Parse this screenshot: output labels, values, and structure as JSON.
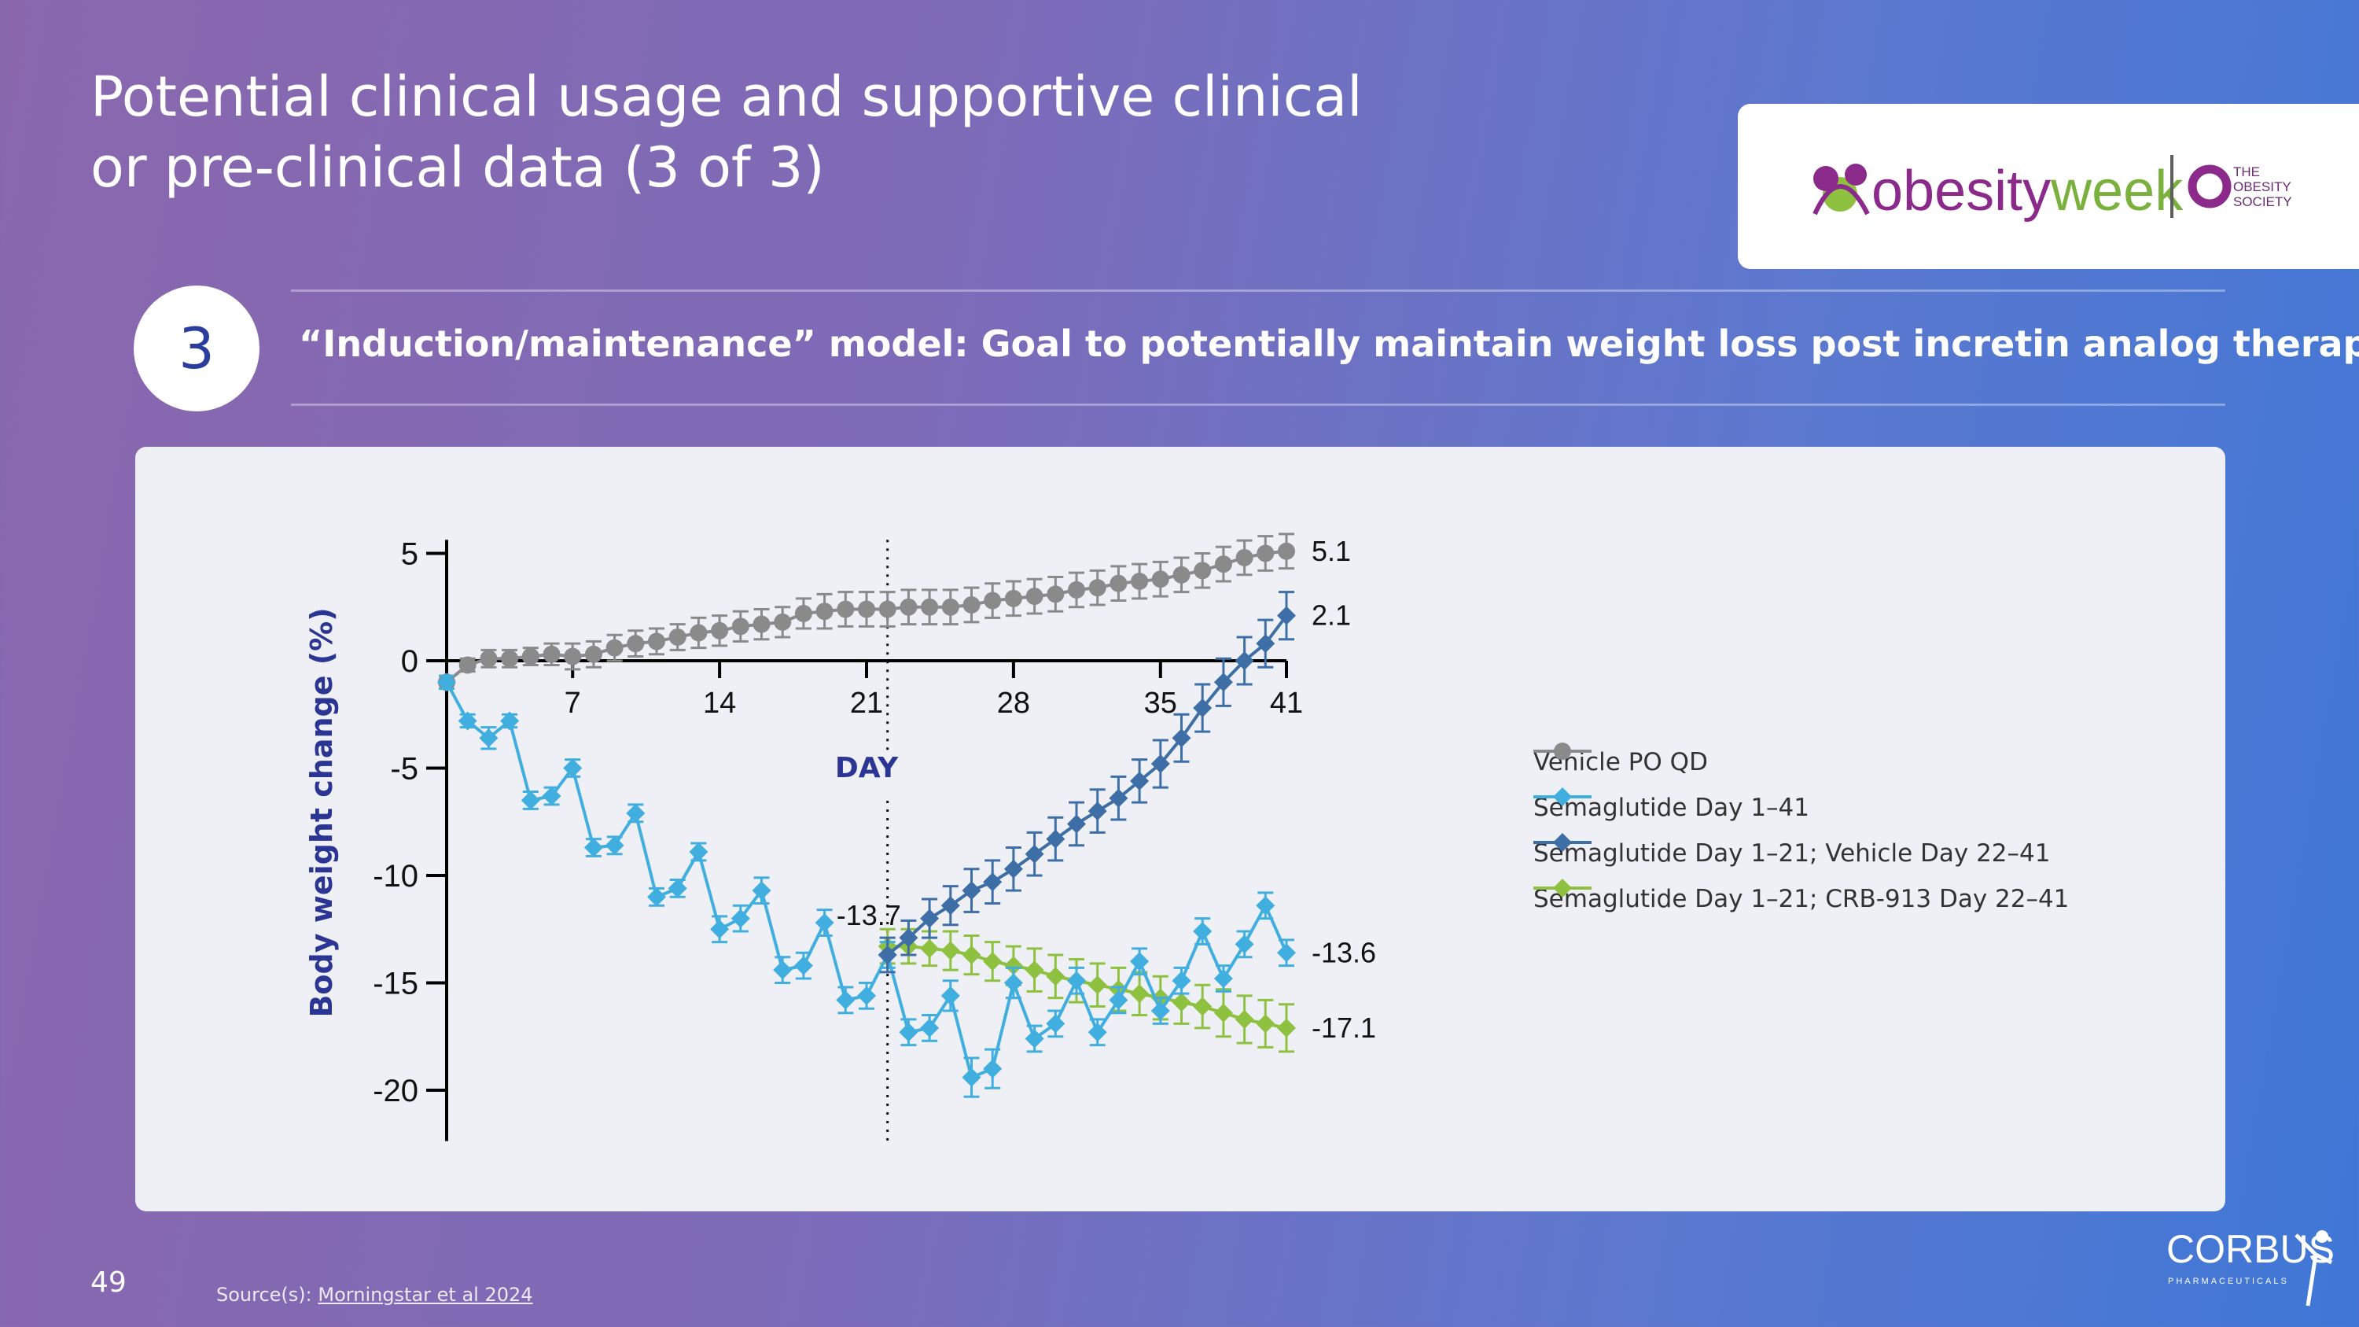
{
  "title_line1": "Potential clinical usage and supportive clinical",
  "title_line2": "or pre-clinical data (3 of 3)",
  "section": {
    "number": "3",
    "subtitle": "“Induction/maintenance” model: Goal to potentially maintain weight loss post incretin analog therapy"
  },
  "logos": {
    "obesityweek": "obesityweek",
    "society": "THE OBESITY SOCIETY",
    "company": "CORBUS",
    "company_sub": "PHARMACEUTICALS"
  },
  "page_number": "49",
  "source_prefix": "Source(s):",
  "source_link": "Morningstar et al 2024",
  "colors": {
    "vehicle": "#8a8a8a",
    "sema_full": "#41aee0",
    "sema_vehicle": "#3e6ea6",
    "sema_crb": "#8dc13f",
    "ylabel": "#2b3593"
  },
  "chart_data": {
    "type": "line",
    "xlabel": "DAY",
    "ylabel": "Body weight change (%)",
    "x_ticks": [
      7,
      14,
      21,
      28,
      35,
      41
    ],
    "y_ticks": [
      5,
      0,
      -5,
      -10,
      -15,
      -20
    ],
    "xlim": [
      1,
      41
    ],
    "ylim": [
      -22,
      6
    ],
    "marker_day": 22,
    "annotations": [
      {
        "text": "-13.7",
        "x": 22,
        "y": -13.7
      },
      {
        "text": "5.1",
        "x": 41,
        "y": 5.1
      },
      {
        "text": "2.1",
        "x": 41,
        "y": 2.1
      },
      {
        "text": "-13.6",
        "x": 41,
        "y": -13.6
      },
      {
        "text": "-17.1",
        "x": 41,
        "y": -17.1
      }
    ],
    "series": [
      {
        "name": "Vehicle PO QD",
        "marker": "circle",
        "x": [
          1,
          2,
          3,
          4,
          5,
          6,
          7,
          8,
          9,
          10,
          11,
          12,
          13,
          14,
          15,
          16,
          17,
          18,
          19,
          20,
          21,
          22,
          23,
          24,
          25,
          26,
          27,
          28,
          29,
          30,
          31,
          32,
          33,
          34,
          35,
          36,
          37,
          38,
          39,
          40,
          41
        ],
        "values": [
          -1.0,
          -0.2,
          0.1,
          0.1,
          0.2,
          0.3,
          0.2,
          0.3,
          0.6,
          0.8,
          0.9,
          1.1,
          1.3,
          1.4,
          1.6,
          1.7,
          1.8,
          2.2,
          2.3,
          2.4,
          2.4,
          2.4,
          2.5,
          2.5,
          2.5,
          2.6,
          2.8,
          2.9,
          3.0,
          3.1,
          3.3,
          3.4,
          3.6,
          3.7,
          3.8,
          4.0,
          4.2,
          4.5,
          4.8,
          5.0,
          5.1
        ],
        "errors": [
          0.3,
          0.3,
          0.4,
          0.4,
          0.4,
          0.5,
          0.6,
          0.6,
          0.6,
          0.6,
          0.6,
          0.6,
          0.7,
          0.7,
          0.7,
          0.7,
          0.7,
          0.7,
          0.8,
          0.8,
          0.8,
          0.8,
          0.8,
          0.8,
          0.8,
          0.8,
          0.8,
          0.8,
          0.8,
          0.8,
          0.8,
          0.8,
          0.8,
          0.8,
          0.8,
          0.8,
          0.8,
          0.8,
          0.8,
          0.8,
          0.8
        ]
      },
      {
        "name": "Semaglutide Day 1–41",
        "marker": "diamond",
        "x": [
          1,
          2,
          3,
          4,
          5,
          6,
          7,
          8,
          9,
          10,
          11,
          12,
          13,
          14,
          15,
          16,
          17,
          18,
          19,
          20,
          21,
          22,
          23,
          24,
          25,
          26,
          27,
          28,
          29,
          30,
          31,
          32,
          33,
          34,
          35,
          36,
          37,
          38,
          39,
          40,
          41
        ],
        "values": [
          -1.0,
          -2.8,
          -3.6,
          -2.8,
          -6.5,
          -6.3,
          -5.0,
          -8.7,
          -8.6,
          -7.1,
          -11.0,
          -10.6,
          -8.9,
          -12.5,
          -12.0,
          -10.7,
          -14.4,
          -14.2,
          -12.2,
          -15.8,
          -15.6,
          -13.7,
          -17.3,
          -17.1,
          -15.6,
          -19.4,
          -19.0,
          -15.0,
          -17.6,
          -16.9,
          -14.9,
          -17.3,
          -15.8,
          -14.0,
          -16.3,
          -14.9,
          -12.6,
          -14.8,
          -13.2,
          -11.4,
          -13.6
        ],
        "errors": [
          0.3,
          0.3,
          0.5,
          0.3,
          0.4,
          0.4,
          0.4,
          0.4,
          0.4,
          0.4,
          0.4,
          0.4,
          0.4,
          0.6,
          0.6,
          0.6,
          0.6,
          0.6,
          0.6,
          0.6,
          0.6,
          0.6,
          0.6,
          0.6,
          0.7,
          0.9,
          0.9,
          0.7,
          0.6,
          0.6,
          0.6,
          0.6,
          0.6,
          0.6,
          0.6,
          0.6,
          0.6,
          0.6,
          0.6,
          0.6,
          0.6
        ]
      },
      {
        "name": "Semaglutide Day 1–21; Vehicle Day 22–41",
        "marker": "diamond",
        "x": [
          22,
          23,
          24,
          25,
          26,
          27,
          28,
          29,
          30,
          31,
          32,
          33,
          34,
          35,
          36,
          37,
          38,
          39,
          40,
          41
        ],
        "values": [
          -13.7,
          -12.9,
          -12.0,
          -11.4,
          -10.7,
          -10.3,
          -9.7,
          -9.0,
          -8.3,
          -7.6,
          -7.0,
          -6.4,
          -5.6,
          -4.8,
          -3.6,
          -2.2,
          -1.0,
          0.0,
          0.8,
          2.1
        ],
        "errors": [
          0.8,
          0.8,
          0.9,
          0.9,
          1.0,
          1.0,
          1.0,
          1.0,
          1.0,
          1.0,
          1.0,
          1.0,
          1.0,
          1.1,
          1.1,
          1.1,
          1.1,
          1.1,
          1.1,
          1.1
        ]
      },
      {
        "name": "Semaglutide Day 1–21; CRB-913 Day 22–41",
        "marker": "diamond",
        "x": [
          22,
          23,
          24,
          25,
          26,
          27,
          28,
          29,
          30,
          31,
          32,
          33,
          34,
          35,
          36,
          37,
          38,
          39,
          40,
          41
        ],
        "values": [
          -13.3,
          -13.3,
          -13.4,
          -13.5,
          -13.7,
          -14.0,
          -14.2,
          -14.4,
          -14.7,
          -14.9,
          -15.1,
          -15.3,
          -15.5,
          -15.7,
          -15.9,
          -16.1,
          -16.4,
          -16.7,
          -16.9,
          -17.1
        ],
        "errors": [
          0.8,
          0.8,
          0.8,
          0.9,
          0.9,
          0.9,
          0.9,
          1.0,
          1.0,
          1.0,
          1.0,
          1.0,
          1.0,
          1.0,
          1.0,
          1.0,
          1.1,
          1.1,
          1.1,
          1.1
        ]
      }
    ]
  }
}
